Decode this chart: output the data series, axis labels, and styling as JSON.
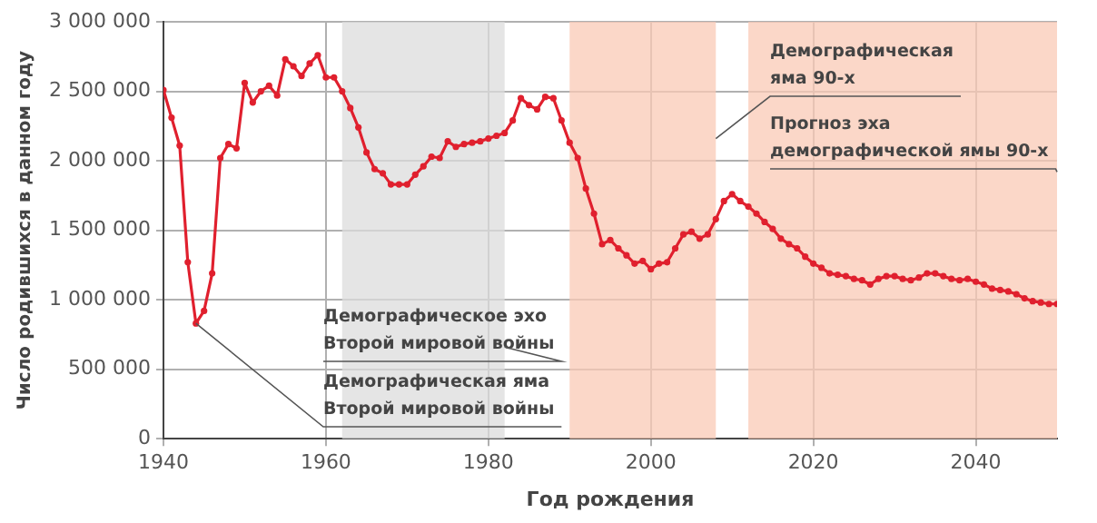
{
  "chart_data": {
    "type": "line",
    "xlabel": "Год рождения",
    "ylabel": "Число родившихся в данном году",
    "x": [
      1940,
      1941,
      1942,
      1943,
      1944,
      1945,
      1946,
      1947,
      1948,
      1949,
      1950,
      1951,
      1952,
      1953,
      1954,
      1955,
      1956,
      1957,
      1958,
      1959,
      1960,
      1961,
      1962,
      1963,
      1964,
      1965,
      1966,
      1967,
      1968,
      1969,
      1970,
      1971,
      1972,
      1973,
      1974,
      1975,
      1976,
      1977,
      1978,
      1979,
      1980,
      1981,
      1982,
      1983,
      1984,
      1985,
      1986,
      1987,
      1988,
      1989,
      1990,
      1991,
      1992,
      1993,
      1994,
      1995,
      1996,
      1997,
      1998,
      1999,
      2000,
      2001,
      2002,
      2003,
      2004,
      2005,
      2006,
      2007,
      2008,
      2009,
      2010,
      2011,
      2012,
      2013,
      2014,
      2015,
      2016,
      2017,
      2018,
      2019,
      2020,
      2021,
      2022,
      2023,
      2024,
      2025,
      2026,
      2027,
      2028,
      2029,
      2030,
      2031,
      2032,
      2033,
      2034,
      2035,
      2036,
      2037,
      2038,
      2039,
      2040,
      2041,
      2042,
      2043,
      2044,
      2045,
      2046,
      2047,
      2048,
      2049,
      2050
    ],
    "series": [
      {
        "color": "#e0202e",
        "values": [
          2510000,
          2310000,
          2110000,
          1270000,
          830000,
          920000,
          1190000,
          2020000,
          2120000,
          2090000,
          2560000,
          2420000,
          2500000,
          2540000,
          2470000,
          2730000,
          2680000,
          2610000,
          2700000,
          2760000,
          2600000,
          2600000,
          2500000,
          2380000,
          2240000,
          2060000,
          1940000,
          1910000,
          1830000,
          1830000,
          1830000,
          1900000,
          1960000,
          2030000,
          2020000,
          2140000,
          2100000,
          2120000,
          2130000,
          2140000,
          2160000,
          2180000,
          2200000,
          2290000,
          2450000,
          2400000,
          2370000,
          2460000,
          2450000,
          2290000,
          2130000,
          2020000,
          1800000,
          1620000,
          1400000,
          1430000,
          1370000,
          1320000,
          1260000,
          1280000,
          1220000,
          1260000,
          1270000,
          1370000,
          1470000,
          1490000,
          1440000,
          1470000,
          1580000,
          1710000,
          1760000,
          1710000,
          1670000,
          1620000,
          1560000,
          1510000,
          1440000,
          1400000,
          1370000,
          1310000,
          1260000,
          1230000,
          1190000,
          1180000,
          1170000,
          1150000,
          1140000,
          1110000,
          1150000,
          1170000,
          1170000,
          1150000,
          1140000,
          1160000,
          1190000,
          1190000,
          1170000,
          1150000,
          1140000,
          1150000,
          1130000,
          1110000,
          1080000,
          1070000,
          1060000,
          1040000,
          1010000,
          990000,
          980000,
          970000,
          970000
        ]
      }
    ],
    "xlim": [
      1940,
      2050
    ],
    "xticks": [
      1940,
      1960,
      1980,
      2000,
      2020,
      2040
    ],
    "ylim": [
      0,
      3000000
    ],
    "yticks": [
      {
        "value": 0,
        "label": "0"
      },
      {
        "value": 500000,
        "label": "500 000"
      },
      {
        "value": 1000000,
        "label": "1 000 000"
      },
      {
        "value": 1500000,
        "label": "1 500 000"
      },
      {
        "value": 2000000,
        "label": "2 000 000"
      },
      {
        "value": 2500000,
        "label": "2 500 000"
      },
      {
        "value": 3000000,
        "label": "3 000 000"
      }
    ],
    "grid": true,
    "marker": "circle",
    "line_style": "solid",
    "bands": [
      {
        "axis": "x",
        "from": 1962,
        "to": 1982,
        "label": "Демографическое эхо\nВторой мировой войны",
        "color": "#dcdcdc"
      },
      {
        "axis": "x",
        "from": 1990,
        "to": 2008,
        "label": "Демографическая\nяма 90-х",
        "color": "#f9c9b6"
      },
      {
        "axis": "x",
        "from": 2012,
        "to": 2050,
        "label": "Прогноз эха\nдемографической ямы 90-х",
        "color": "#f9c9b6"
      }
    ],
    "annotations": [
      {
        "text": "Демографическая яма\nВторой мировой войны",
        "x": 1944,
        "y": 830000
      }
    ]
  }
}
